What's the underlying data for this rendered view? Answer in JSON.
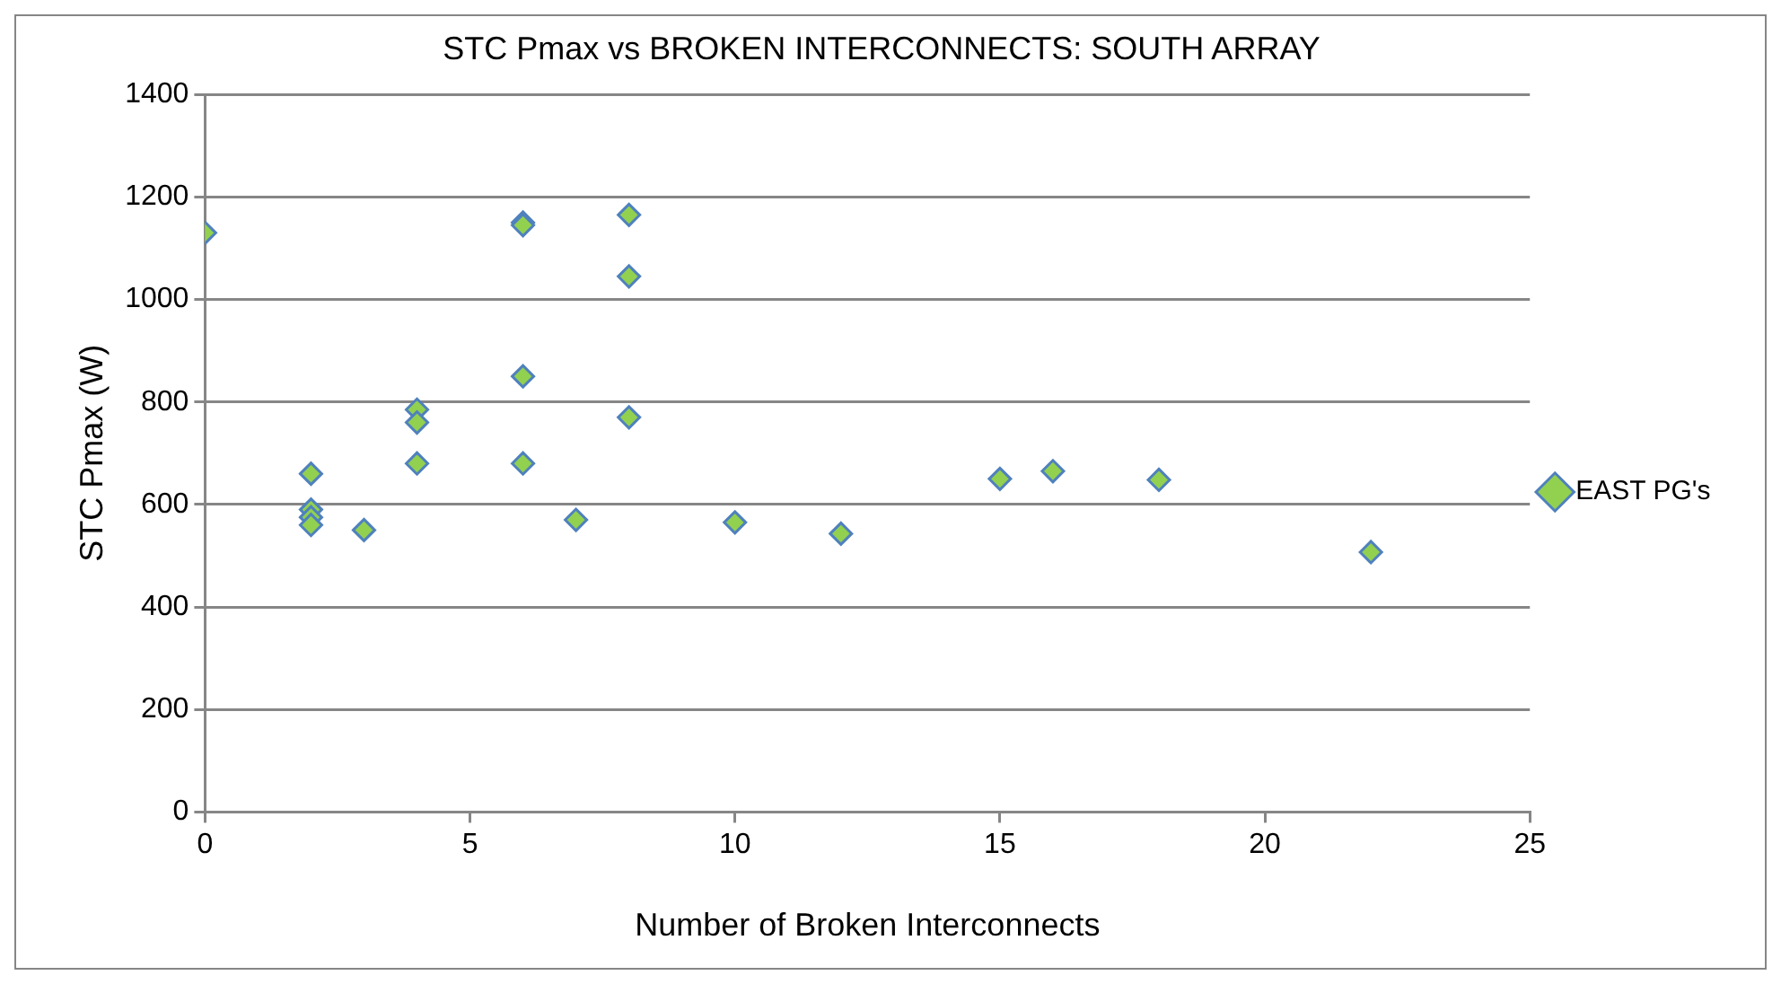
{
  "chart_data": {
    "type": "scatter",
    "title": "STC Pmax vs BROKEN INTERCONNECTS: SOUTH ARRAY",
    "xlabel": "Number of Broken Interconnects",
    "ylabel": "STC Pmax (W)",
    "x": [
      0,
      2,
      2,
      2,
      2,
      3,
      4,
      4,
      4,
      6,
      6,
      6,
      6,
      7,
      8,
      8,
      8,
      10,
      12,
      15,
      16,
      18,
      22
    ],
    "series": [
      {
        "name": "EAST PG's",
        "color": "#92d050",
        "values": [
          1130,
          660,
          590,
          575,
          560,
          550,
          785,
          760,
          680,
          1150,
          1145,
          850,
          680,
          570,
          1165,
          1045,
          770,
          565,
          543,
          650,
          665,
          648,
          507
        ]
      }
    ],
    "xlim": [
      0,
      25
    ],
    "xticks": [
      0,
      5,
      10,
      15,
      20,
      25
    ],
    "ylim": [
      0,
      1400
    ],
    "yticks": [
      0,
      200,
      400,
      600,
      800,
      1000,
      1200,
      1400
    ],
    "grid": "y",
    "legend": "right",
    "marker": "diamond"
  }
}
